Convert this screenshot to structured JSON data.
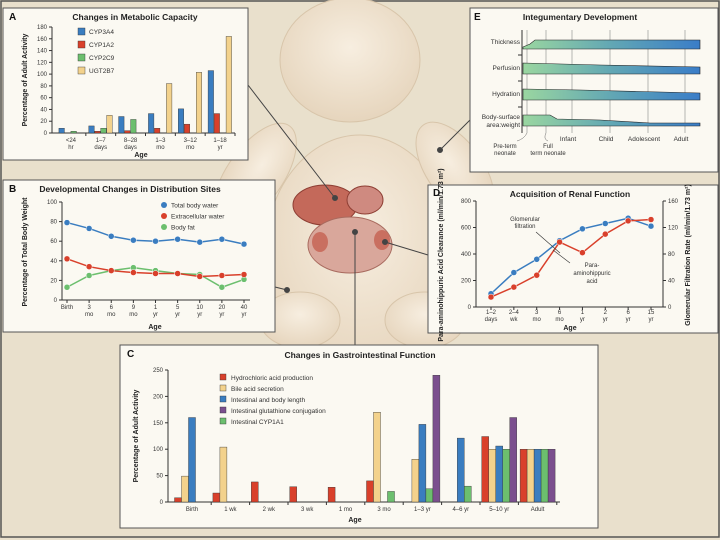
{
  "colors": {
    "background": "#e9e0cc",
    "panel": "#fbf9f2",
    "blue": "#3a7dc0",
    "red": "#d9402b",
    "green": "#6cbf6e",
    "tan": "#f3d28c",
    "purple": "#7b4f8e",
    "skin": "#f2e6d4",
    "organ": "#c05a4a"
  },
  "chart_data": [
    {
      "panel": "A",
      "type": "bar",
      "title": "Changes in Metabolic Capacity",
      "xlabel": "Age",
      "ylabel": "Percentage of Adult Activity",
      "ylim": [
        0,
        180
      ],
      "yticks": [
        0,
        20,
        40,
        60,
        80,
        100,
        120,
        140,
        160,
        180
      ],
      "categories": [
        "<24 hr",
        "1–7 days",
        "8–28 days",
        "1–3 mo",
        "3–12 mo",
        "1–18 yr"
      ],
      "legend": "top-left",
      "series": [
        {
          "name": "CYP3A4",
          "color": "#3a7dc0",
          "values": [
            8,
            12,
            28,
            33,
            41,
            106
          ]
        },
        {
          "name": "CYP1A2",
          "color": "#d9402b",
          "values": [
            0,
            3,
            4,
            8,
            15,
            33
          ]
        },
        {
          "name": "CYP2C9",
          "color": "#6cbf6e",
          "values": [
            3,
            8,
            23,
            null,
            null,
            null
          ]
        },
        {
          "name": "UGT2B7",
          "color": "#f3d28c",
          "values": [
            null,
            30,
            null,
            84,
            103,
            164
          ]
        }
      ]
    },
    {
      "panel": "B",
      "type": "line",
      "title": "Developmental Changes in Distribution Sites",
      "xlabel": "Age",
      "ylabel": "Percentage of Total Body Weight",
      "ylim": [
        0,
        100
      ],
      "yticks": [
        0,
        20,
        40,
        60,
        80,
        100
      ],
      "categories": [
        "Birth",
        "3 mo",
        "6 mo",
        "9 mo",
        "1 yr",
        "5 yr",
        "10 yr",
        "20 yr",
        "40 yr"
      ],
      "legend": "top-right",
      "series": [
        {
          "name": "Total body water",
          "color": "#3a7dc0",
          "values": [
            79,
            73,
            65,
            61,
            60,
            62,
            59,
            62,
            57
          ]
        },
        {
          "name": "Extracellular water",
          "color": "#d9402b",
          "values": [
            42,
            34,
            30,
            28,
            27,
            27,
            24,
            25,
            26
          ]
        },
        {
          "name": "Body fat",
          "color": "#6cbf6e",
          "values": [
            13,
            25,
            30,
            33,
            30,
            27,
            26,
            13,
            21
          ]
        }
      ]
    },
    {
      "panel": "C",
      "type": "bar",
      "title": "Changes in Gastrointestinal Function",
      "xlabel": "Age",
      "ylabel": "Percentage of Adult Activity",
      "ylim": [
        0,
        250
      ],
      "yticks": [
        0,
        50,
        100,
        150,
        200,
        250
      ],
      "categories": [
        "Birth",
        "1 wk",
        "2 wk",
        "3 wk",
        "1 mo",
        "3 mo",
        "1–3 yr",
        "4–6 yr",
        "5–10 yr",
        "Adult"
      ],
      "legend": "top-left",
      "series": [
        {
          "name": "Hydrochloric acid production",
          "color": "#d9402b",
          "values": [
            8,
            17,
            38,
            29,
            28,
            40,
            null,
            null,
            124,
            100
          ]
        },
        {
          "name": "Bile acid secretion",
          "color": "#f3d28c",
          "values": [
            49,
            104,
            null,
            null,
            null,
            170,
            81,
            null,
            100,
            100
          ]
        },
        {
          "name": "Intestinal and body length",
          "color": "#3a7dc0",
          "values": [
            160,
            null,
            null,
            null,
            null,
            null,
            147,
            121,
            106,
            100
          ]
        },
        {
          "name": "Intestinal glutathione conjugation",
          "color": "#7b4f8e",
          "values": [
            null,
            null,
            null,
            null,
            null,
            null,
            240,
            null,
            160,
            100
          ]
        },
        {
          "name": "Intestinal CYP1A1",
          "color": "#6cbf6e",
          "values": [
            null,
            null,
            null,
            null,
            null,
            20,
            25,
            30,
            100,
            100
          ]
        }
      ],
      "series_draw_order": [
        0,
        1,
        2,
        4,
        3
      ]
    },
    {
      "panel": "D",
      "type": "line",
      "title": "Acquisition of Renal Function",
      "xlabel": "Age",
      "ylabel": "Para-aminohippuric Acid Clearance (ml/min/1.73 m²)",
      "ylabel_right": "Glomerular Filtration Rate (ml/min/1.73 m²)",
      "ylim": [
        0,
        800
      ],
      "ylim_right": [
        0,
        160
      ],
      "yticks": [
        0,
        200,
        400,
        600,
        800
      ],
      "yticks_right": [
        0,
        40,
        80,
        120,
        160
      ],
      "categories": [
        "1–2 days",
        "2–4 wk",
        "3 mo",
        "6 mo",
        "1 yr",
        "2 yr",
        "6 yr",
        "15 yr"
      ],
      "series": [
        {
          "name": "Glomerular filtration",
          "axis": "right",
          "color": "#3a7dc0",
          "values": [
            20,
            52,
            72,
            100,
            118,
            126,
            134,
            122
          ]
        },
        {
          "name": "Para-aminohippuric acid",
          "axis": "left",
          "color": "#d9402b",
          "values": [
            75,
            150,
            240,
            490,
            410,
            550,
            650,
            660
          ]
        }
      ]
    },
    {
      "panel": "E",
      "type": "area",
      "title": "Integumentary Development",
      "rows": [
        "Thickness",
        "Perfusion",
        "Hydration",
        "Body-surface area:weight"
      ],
      "stages": [
        "Pre-term neonate",
        "Full term neonate",
        "Infant",
        "Child",
        "Adolescent",
        "Adult"
      ]
    }
  ]
}
